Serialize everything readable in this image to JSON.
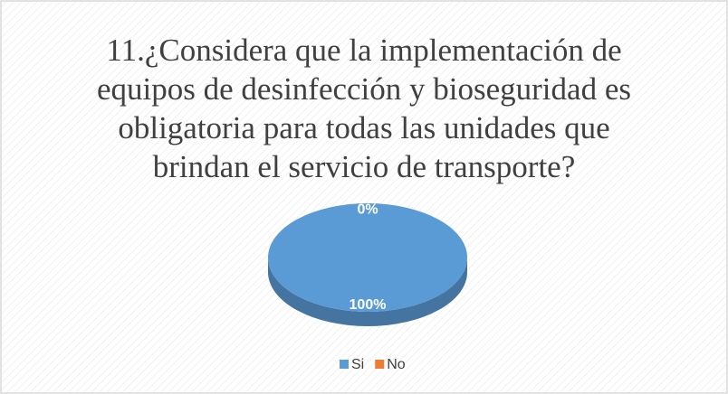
{
  "chart_data": {
    "type": "pie",
    "title": "11.¿Considera que la implementación de equipos de desinfección y bioseguridad es obligatoria para todas las unidades que brindan el servicio de transporte?",
    "categories": [
      "Si",
      "No"
    ],
    "values": [
      100,
      0
    ],
    "value_labels": [
      "100%",
      "0%"
    ],
    "colors": [
      "#5b9bd5",
      "#ed7d31"
    ],
    "legend": "bottom"
  }
}
